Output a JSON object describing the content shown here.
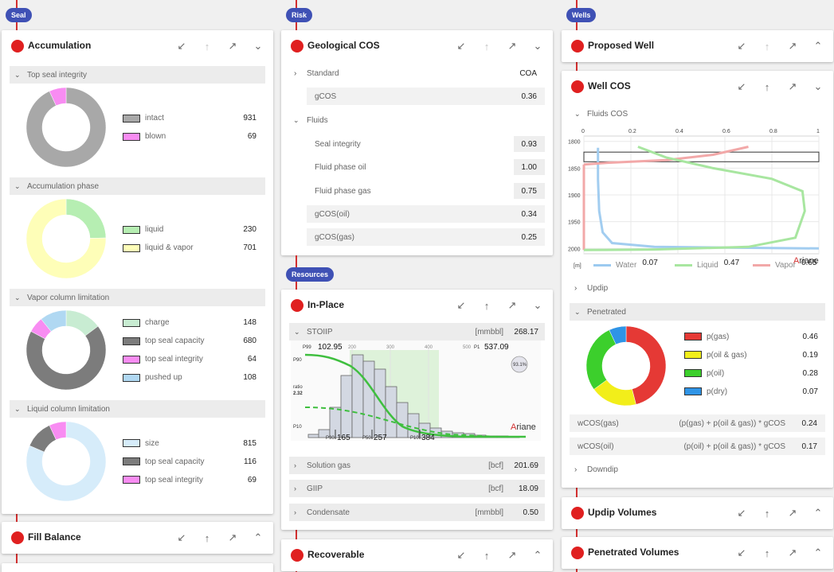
{
  "columns": {
    "seal_pill": "Seal",
    "risk_pill": "Risk",
    "resources_pill": "Resources",
    "wells_pill": "Wells"
  },
  "accumulation": {
    "title": "Accumulation",
    "sections": [
      {
        "title": "Top seal integrity",
        "items": [
          {
            "label": "intact",
            "value": "931",
            "color": "#a8a8a8"
          },
          {
            "label": "blown",
            "value": "69",
            "color": "#f88cf2"
          }
        ]
      },
      {
        "title": "Accumulation phase",
        "items": [
          {
            "label": "liquid",
            "value": "230",
            "color": "#b6eeb2"
          },
          {
            "label": "liquid & vapor",
            "value": "701",
            "color": "#fefeb8"
          }
        ]
      },
      {
        "title": "Vapor column limitation",
        "items": [
          {
            "label": "charge",
            "value": "148",
            "color": "#c8ecd2"
          },
          {
            "label": "top seal capacity",
            "value": "680",
            "color": "#7c7c7c"
          },
          {
            "label": "top seal integrity",
            "value": "64",
            "color": "#f88cf2"
          },
          {
            "label": "pushed up",
            "value": "108",
            "color": "#b0d8f2"
          }
        ]
      },
      {
        "title": "Liquid column limitation",
        "items": [
          {
            "label": "size",
            "value": "815",
            "color": "#d6ecfa"
          },
          {
            "label": "top seal capacity",
            "value": "116",
            "color": "#7c7c7c"
          },
          {
            "label": "top seal integrity",
            "value": "69",
            "color": "#f88cf2"
          }
        ]
      }
    ]
  },
  "fill_balance": {
    "title": "Fill Balance"
  },
  "geological_cos": {
    "title": "Geological COS",
    "standard_label": "Standard",
    "standard_value": "COA",
    "gcos_label": "gCOS",
    "gcos_value": "0.36",
    "fluids_label": "Fluids",
    "fluids_rows": [
      {
        "label": "Seal integrity",
        "value": "0.93"
      },
      {
        "label": "Fluid phase oil",
        "value": "1.00"
      },
      {
        "label": "Fluid phase gas",
        "value": "0.75"
      },
      {
        "label": "gCOS(oil)",
        "value": "0.34"
      },
      {
        "label": "gCOS(gas)",
        "value": "0.25"
      }
    ]
  },
  "in_place": {
    "title": "In-Place",
    "stoiip_label": "STOIIP",
    "stoiip_unit": "[mmbbl]",
    "stoiip_value": "268.17",
    "chart": {
      "p99_label": "P99",
      "p99_value": "102.95",
      "p1_label": "P1",
      "p1_prefix": "500",
      "p1_value": "537.09",
      "x_ticks": [
        "200",
        "300",
        "400"
      ],
      "y_p90": "P90",
      "y_ratio_label": "ratio",
      "y_ratio_value": "2.32",
      "y_p10": "P10",
      "badge": "93.1%",
      "watermark_a": "A",
      "watermark_rest": "riane",
      "p90_label": "P90",
      "p90_value": "165",
      "p50_label": "P50",
      "p50_value": "257",
      "p10_label": "P10",
      "p10_value": "384"
    },
    "rows": [
      {
        "label": "Solution gas",
        "unit": "[bcf]",
        "value": "201.69"
      },
      {
        "label": "GIIP",
        "unit": "[bcf]",
        "value": "18.09"
      },
      {
        "label": "Condensate",
        "unit": "[mmbbl]",
        "value": "0.50"
      }
    ]
  },
  "recoverable": {
    "title": "Recoverable"
  },
  "proposed_well": {
    "title": "Proposed Well"
  },
  "well_cos": {
    "title": "Well COS",
    "fluids_cos_label": "Fluids COS",
    "chart": {
      "x_ticks": [
        "0",
        "0.2",
        "0.4",
        "0.6",
        "0.8",
        "1"
      ],
      "y_ticks": [
        "1800",
        "1850",
        "1900",
        "1950",
        "2000"
      ],
      "y_unit": "[m]",
      "watermark_a": "A",
      "watermark_rest": "riane"
    },
    "legend": [
      {
        "label": "Water",
        "value": "0.07",
        "color": "#9ccaf0"
      },
      {
        "label": "Liquid",
        "value": "0.47",
        "color": "#a8e6a0"
      },
      {
        "label": "Vapor",
        "value": "0.65",
        "color": "#f2a8a8"
      }
    ],
    "updip_label": "Updip",
    "penetrated_label": "Penetrated",
    "pie": [
      {
        "label": "p(gas)",
        "value": "0.46",
        "color": "#e53935"
      },
      {
        "label": "p(oil & gas)",
        "value": "0.19",
        "color": "#f2ee1a"
      },
      {
        "label": "p(oil)",
        "value": "0.28",
        "color": "#3ccf2c"
      },
      {
        "label": "p(dry)",
        "value": "0.07",
        "color": "#2f94e6"
      }
    ],
    "wcos_rows": [
      {
        "label": "wCOS(gas)",
        "formula": "(p(gas) + p(oil & gas)) * gCOS",
        "value": "0.24"
      },
      {
        "label": "wCOS(oil)",
        "formula": "(p(oil) + p(oil & gas)) * gCOS",
        "value": "0.17"
      }
    ],
    "downdip_label": "Downdip"
  },
  "updip_volumes": {
    "title": "Updip Volumes"
  },
  "penetrated_volumes": {
    "title": "Penetrated Volumes"
  },
  "icons": [
    "collapse-icon",
    "up-arrow-icon",
    "expand-icon",
    "chevron-down-icon"
  ]
}
